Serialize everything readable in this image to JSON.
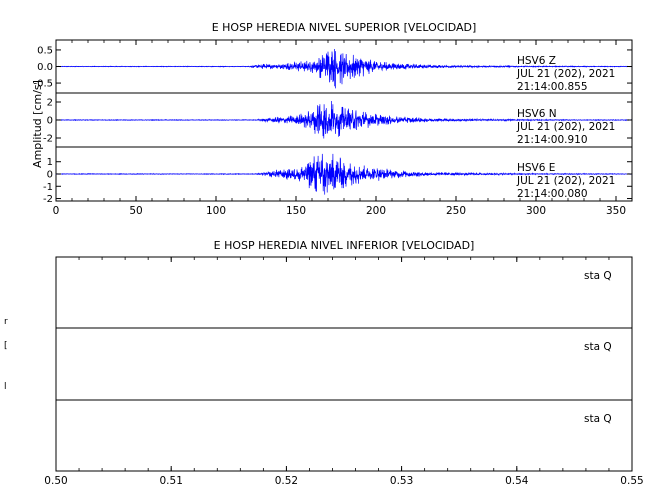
{
  "colors": {
    "trace": "#0000ff",
    "axis": "#000000",
    "background": "#ffffff"
  },
  "chart_data": [
    {
      "type": "line",
      "title": "E HOSP HEREDIA NIVEL SUPERIOR [VELOCIDAD]",
      "ylabel": "Amplitud [cm/s]",
      "xlim": [
        0,
        360
      ],
      "xticks": [
        "0",
        "50",
        "100",
        "150",
        "200",
        "250",
        "300",
        "350"
      ],
      "series": [
        {
          "name": "HSV6 Z",
          "label_lines": [
            "HSV6    Z",
            "JUL 21 (202), 2021",
            "21:14:00.855"
          ],
          "ylim": [
            -0.8,
            0.8
          ],
          "yticks": [
            "0.5",
            "0.0",
            "-0.5"
          ],
          "envelope": {
            "noise": 0.01,
            "segments": [
              [
                0,
                0.01
              ],
              [
                120,
                0.01
              ],
              [
                128,
                0.08
              ],
              [
                140,
                0.1
              ],
              [
                150,
                0.15
              ],
              [
                160,
                0.2
              ],
              [
                165,
                0.35
              ],
              [
                170,
                0.55
              ],
              [
                175,
                0.75
              ],
              [
                178,
                0.6
              ],
              [
                185,
                0.45
              ],
              [
                195,
                0.25
              ],
              [
                210,
                0.12
              ],
              [
                230,
                0.06
              ],
              [
                260,
                0.03
              ],
              [
                300,
                0.015
              ],
              [
                360,
                0.01
              ]
            ]
          }
        },
        {
          "name": "HSV6 N",
          "label_lines": [
            "HSV6    N",
            "JUL 21 (202), 2021",
            "21:14:00.910"
          ],
          "ylim": [
            -3,
            3
          ],
          "yticks": [
            "2",
            "0",
            "-2"
          ],
          "envelope": {
            "noise": 0.04,
            "segments": [
              [
                0,
                0.04
              ],
              [
                125,
                0.04
              ],
              [
                135,
                0.3
              ],
              [
                150,
                0.6
              ],
              [
                160,
                1.2
              ],
              [
                165,
                2.9
              ],
              [
                170,
                2.5
              ],
              [
                175,
                2.0
              ],
              [
                185,
                1.4
              ],
              [
                195,
                0.9
              ],
              [
                210,
                0.5
              ],
              [
                230,
                0.25
              ],
              [
                260,
                0.12
              ],
              [
                300,
                0.06
              ],
              [
                360,
                0.04
              ]
            ]
          }
        },
        {
          "name": "HSV6 E",
          "label_lines": [
            "HSV6    E",
            "JUL 21 (202), 2021",
            "21:14:00.080"
          ],
          "ylim": [
            -2.2,
            2.2
          ],
          "yticks": [
            "1",
            "0",
            "-1",
            "-2"
          ],
          "envelope": {
            "noise": 0.03,
            "segments": [
              [
                0,
                0.03
              ],
              [
                125,
                0.03
              ],
              [
                135,
                0.3
              ],
              [
                150,
                0.6
              ],
              [
                160,
                1.4
              ],
              [
                165,
                2.2
              ],
              [
                170,
                1.9
              ],
              [
                178,
                1.5
              ],
              [
                185,
                1.0
              ],
              [
                195,
                0.7
              ],
              [
                210,
                0.4
              ],
              [
                230,
                0.2
              ],
              [
                260,
                0.1
              ],
              [
                300,
                0.05
              ],
              [
                360,
                0.03
              ]
            ]
          }
        }
      ]
    },
    {
      "type": "line",
      "title": "E HOSP HEREDIA NIVEL INFERIOR [VELOCIDAD]",
      "xlim": [
        0.5,
        0.55
      ],
      "xticks": [
        "0.50",
        "0.51",
        "0.52",
        "0.53",
        "0.54",
        "0.55"
      ],
      "ylabel_glyphs": [
        "r",
        "[",
        "l"
      ],
      "series": [
        {
          "name": "sta Q",
          "label_lines": [
            "sta    Q"
          ]
        },
        {
          "name": "sta Q",
          "label_lines": [
            "sta    Q"
          ]
        },
        {
          "name": "sta Q",
          "label_lines": [
            "sta    Q"
          ]
        }
      ]
    }
  ]
}
